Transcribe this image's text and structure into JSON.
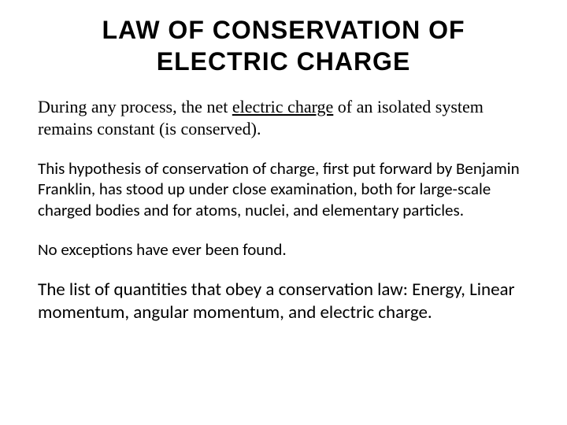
{
  "title": "LAW OF CONSERVATION OF ELECTRIC CHARGE",
  "para1_pre": "During any process, the net ",
  "para1_link": "electric charge",
  "para1_post": " of an isolated system remains constant (is conserved).",
  "para2": "This hypothesis of conservation of charge, first put forward by Benjamin Franklin, has stood up under close examination, both for large-scale charged bodies and for atoms, nuclei, and elementary particles.",
  "para3": "No exceptions have ever been found.",
  "para4": "The list of quantities that obey a conservation law: Energy, Linear momentum, angular momentum, and electric charge."
}
